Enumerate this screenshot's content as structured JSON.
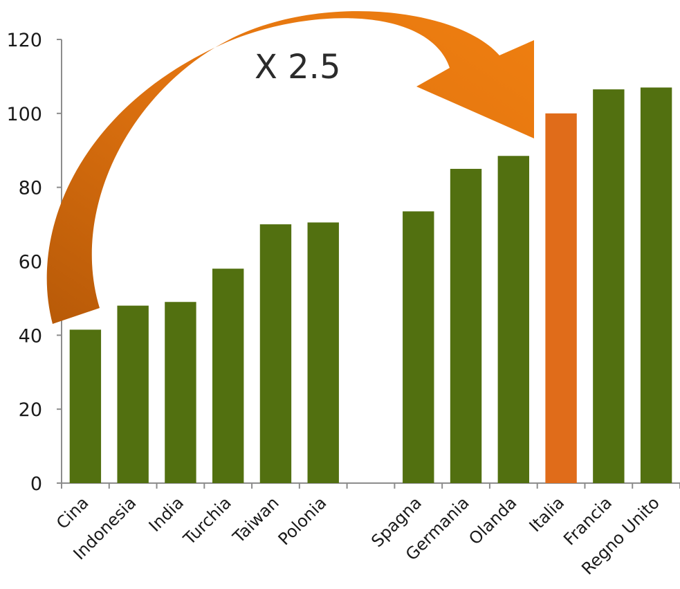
{
  "chart_data": {
    "type": "bar",
    "categories": [
      "Cina",
      "Indonesia",
      "India",
      "Turchia",
      "Taiwan",
      "Polonia",
      "",
      "Spagna",
      "Germania",
      "Olanda",
      "Italia",
      "Francia",
      "Regno Unito"
    ],
    "values": [
      41.5,
      48,
      49,
      58,
      70,
      70.5,
      null,
      73.5,
      85,
      88.5,
      100,
      106.5,
      107
    ],
    "highlight_category": "Italia",
    "ylim": [
      0,
      120
    ],
    "yticks": [
      0,
      20,
      40,
      60,
      80,
      100,
      120
    ],
    "title": "",
    "xlabel": "",
    "ylabel": "",
    "grid": false,
    "annotation": {
      "text": "X 2.5",
      "from": "Cina",
      "to": "Italia"
    },
    "colors": {
      "bar": "#527010",
      "highlight": "#e06c1a",
      "arrow_light": "#ef7f10",
      "arrow_dark": "#b85a08",
      "axis": "#8c8c8c"
    }
  }
}
